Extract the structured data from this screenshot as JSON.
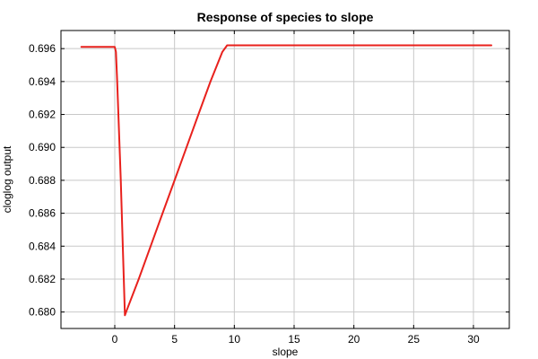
{
  "chart_data": {
    "type": "line",
    "title": "Response of species to slope",
    "xlabel": "slope",
    "ylabel": "cloglog output",
    "xlim": [
      -4.5,
      33
    ],
    "ylim": [
      0.679,
      0.6971
    ],
    "xticks": [
      0,
      5,
      10,
      15,
      20,
      25,
      30
    ],
    "yticks": [
      0.68,
      0.682,
      0.684,
      0.686,
      0.688,
      0.69,
      0.692,
      0.694,
      0.696
    ],
    "ytick_labels": [
      "0.680",
      "0.682",
      "0.684",
      "0.686",
      "0.688",
      "0.690",
      "0.692",
      "0.694",
      "0.696"
    ],
    "grid": true,
    "series": [
      {
        "color": "#e8211d",
        "x": [
          -2.8,
          0.0,
          0.1,
          0.2,
          0.5,
          0.85,
          1.0,
          2.0,
          3.0,
          4.0,
          5.0,
          6.0,
          7.0,
          8.0,
          9.0,
          9.4,
          10.0,
          20.0,
          31.5
        ],
        "y": [
          0.6961,
          0.6961,
          0.6958,
          0.694,
          0.688,
          0.6798,
          0.6801,
          0.682,
          0.684,
          0.686,
          0.688,
          0.69,
          0.692,
          0.694,
          0.6958,
          0.6962,
          0.6962,
          0.6962,
          0.6962
        ]
      }
    ]
  }
}
